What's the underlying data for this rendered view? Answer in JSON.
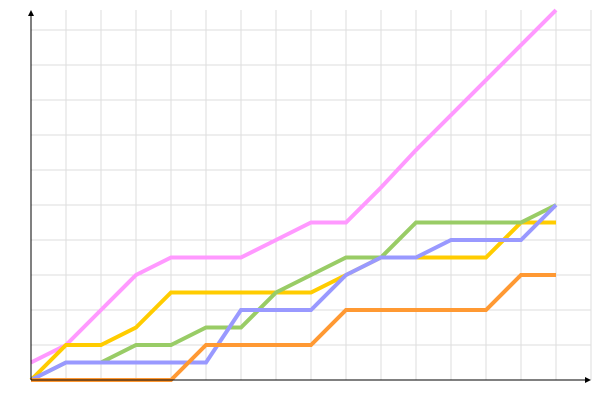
{
  "chart_data": {
    "type": "line",
    "title": "",
    "xlabel": "",
    "ylabel": "",
    "grid": true,
    "legend": "none",
    "xlim": [
      0,
      16
    ],
    "ylim": [
      0,
      10.57
    ],
    "x": [
      0,
      1,
      2,
      3,
      4,
      5,
      6,
      7,
      8,
      9,
      10,
      11,
      12,
      13,
      14,
      15
    ],
    "series": [
      {
        "color": "#ff99ff",
        "values": [
          0.5,
          1,
          2,
          3,
          3.5,
          3.5,
          3.5,
          4,
          4.5,
          4.5,
          5.5,
          6.57,
          7.57,
          8.57,
          9.57,
          10.57
        ]
      },
      {
        "color": "#ffcc00",
        "values": [
          0,
          1,
          1,
          1.5,
          2.5,
          2.5,
          2.5,
          2.5,
          2.5,
          3,
          3.5,
          3.5,
          3.5,
          3.5,
          4.5,
          4.5
        ]
      },
      {
        "color": "#99cc66",
        "values": [
          0,
          0.5,
          0.5,
          1,
          1,
          1.5,
          1.5,
          2.5,
          3,
          3.5,
          3.5,
          4.5,
          4.5,
          4.5,
          4.5,
          5
        ]
      },
      {
        "color": "#9999ff",
        "values": [
          0,
          0.5,
          0.5,
          0.5,
          0.5,
          0.5,
          2,
          2,
          2,
          3,
          3.5,
          3.5,
          4,
          4,
          4,
          5
        ]
      },
      {
        "color": "#ff9933",
        "values": [
          0,
          0,
          0,
          0,
          0,
          1,
          1,
          1,
          1,
          2,
          2,
          2,
          2,
          2,
          3,
          3
        ]
      }
    ]
  }
}
